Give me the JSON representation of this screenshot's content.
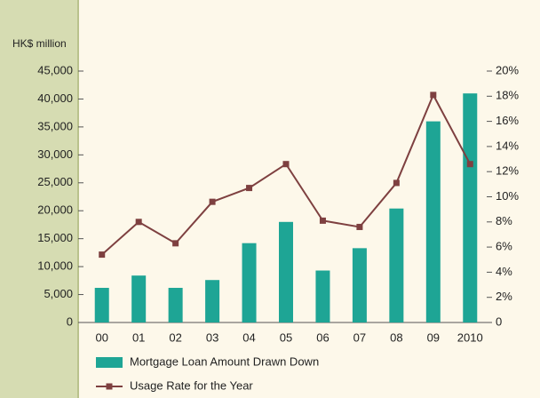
{
  "chart_data": {
    "type": "bar-line",
    "y_label": "HK$ million",
    "categories": [
      "00",
      "01",
      "02",
      "03",
      "04",
      "05",
      "06",
      "07",
      "08",
      "09",
      "2010"
    ],
    "series": [
      {
        "name": "Mortgage Loan Amount Drawn Down",
        "type": "bar",
        "color": "#1ea595",
        "values": [
          6200,
          8400,
          6200,
          7600,
          14200,
          18000,
          9300,
          13300,
          20400,
          36000,
          41000
        ]
      },
      {
        "name": "Usage Rate for the Year",
        "type": "line",
        "axis": "y2",
        "color": "#7e4040",
        "values": [
          5.4,
          8.0,
          6.3,
          9.6,
          10.7,
          12.6,
          8.1,
          7.6,
          11.1,
          18.1,
          12.6
        ]
      }
    ],
    "ylim": [
      0,
      45000
    ],
    "yticks": [
      0,
      {
        "value": 5000,
        "label": "5,000"
      },
      {
        "value": 10000,
        "label": "10,000"
      },
      {
        "value": 15000,
        "label": "15,000"
      },
      {
        "value": 20000,
        "label": "20,000"
      },
      {
        "value": 25000,
        "label": "25,000"
      },
      {
        "value": 30000,
        "label": "30,000"
      },
      {
        "value": 35000,
        "label": "35,000"
      },
      {
        "value": 40000,
        "label": "40,000"
      },
      {
        "value": 45000,
        "label": "45,000"
      }
    ],
    "y2lim": [
      0,
      20
    ],
    "y2ticks": [
      0,
      {
        "value": 2,
        "label": "2%"
      },
      {
        "value": 4,
        "label": "4%"
      },
      {
        "value": 6,
        "label": "6%"
      },
      {
        "value": 8,
        "label": "8%"
      },
      {
        "value": 10,
        "label": "10%"
      },
      {
        "value": 12,
        "label": "12%"
      },
      {
        "value": 14,
        "label": "14%"
      },
      {
        "value": 16,
        "label": "16%"
      },
      {
        "value": 18,
        "label": "18%"
      },
      {
        "value": 20,
        "label": "20%"
      }
    ]
  }
}
